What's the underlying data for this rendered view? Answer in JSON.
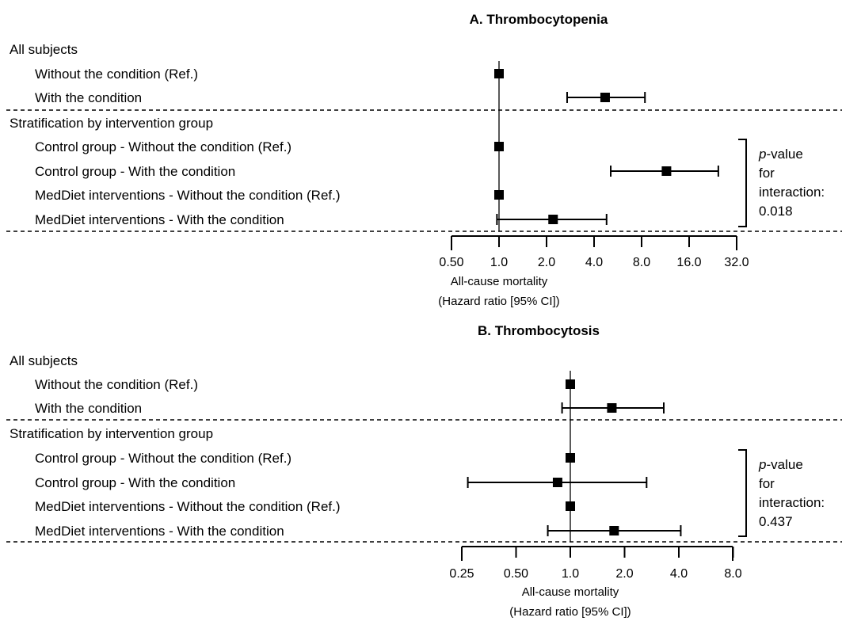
{
  "chart_data": [
    {
      "type": "forest",
      "title": "A. Thrombocytopenia",
      "xlabel": "All-cause mortality",
      "xlabel2": "(Hazard ratio [95% CI])",
      "x_scale": "log2",
      "x_ticks": [
        "0.50",
        "1.0",
        "2.0",
        "4.0",
        "8.0",
        "16.0",
        "32.0"
      ],
      "x_tick_values": [
        0.5,
        1,
        2,
        4,
        8,
        16,
        32
      ],
      "xlim": [
        0.5,
        32
      ],
      "reference_line": 1,
      "rows": [
        {
          "label": "All subjects",
          "type": "header"
        },
        {
          "label": "Without the condition (Ref.)",
          "type": "row",
          "hr": 1.0
        },
        {
          "label": "With the condition",
          "type": "row",
          "hr": 4.7,
          "ci": [
            2.7,
            8.4
          ]
        },
        {
          "label": "Stratification by intervention group",
          "type": "header"
        },
        {
          "label": "Control group - Without the condition (Ref.)",
          "type": "row",
          "hr": 1.0
        },
        {
          "label": "Control group - With the condition",
          "type": "row",
          "hr": 11.5,
          "ci": [
            5.1,
            24.5
          ]
        },
        {
          "label": "MedDiet interventions - Without the condition (Ref.)",
          "type": "row",
          "hr": 1.0
        },
        {
          "label": "MedDiet interventions - With the condition",
          "type": "row",
          "hr": 2.2,
          "ci": [
            0.97,
            4.8
          ]
        }
      ],
      "interaction": {
        "label_italic": "p",
        "label_rest": "-value",
        "line2": "for",
        "line3": "interaction:",
        "value": "0.018"
      }
    },
    {
      "type": "forest",
      "title": "B. Thrombocytosis",
      "xlabel": "All-cause mortality",
      "xlabel2": "(Hazard ratio [95% CI])",
      "x_scale": "log2",
      "x_ticks": [
        "0.25",
        "0.50",
        "1.0",
        "2.0",
        "4.0",
        "8.0"
      ],
      "x_tick_values": [
        0.25,
        0.5,
        1,
        2,
        4,
        8
      ],
      "xlim": [
        0.25,
        8
      ],
      "reference_line": 1,
      "rows": [
        {
          "label": "All subjects",
          "type": "header"
        },
        {
          "label": "Without the condition (Ref.)",
          "type": "row",
          "hr": 1.0
        },
        {
          "label": "With the condition",
          "type": "row",
          "hr": 1.7,
          "ci": [
            0.9,
            3.3
          ]
        },
        {
          "label": "Stratification by intervention group",
          "type": "header"
        },
        {
          "label": "Control group - Without the condition (Ref.)",
          "type": "row",
          "hr": 1.0
        },
        {
          "label": "Control group - With the condition",
          "type": "row",
          "hr": 0.85,
          "ci": [
            0.27,
            2.65
          ]
        },
        {
          "label": "MedDiet interventions - Without the condition (Ref.)",
          "type": "row",
          "hr": 1.0
        },
        {
          "label": "MedDiet interventions - With the condition",
          "type": "row",
          "hr": 1.75,
          "ci": [
            0.75,
            4.1
          ]
        }
      ],
      "interaction": {
        "label_italic": "p",
        "label_rest": "-value",
        "line2": "for",
        "line3": "interaction:",
        "value": "0.437"
      }
    }
  ]
}
